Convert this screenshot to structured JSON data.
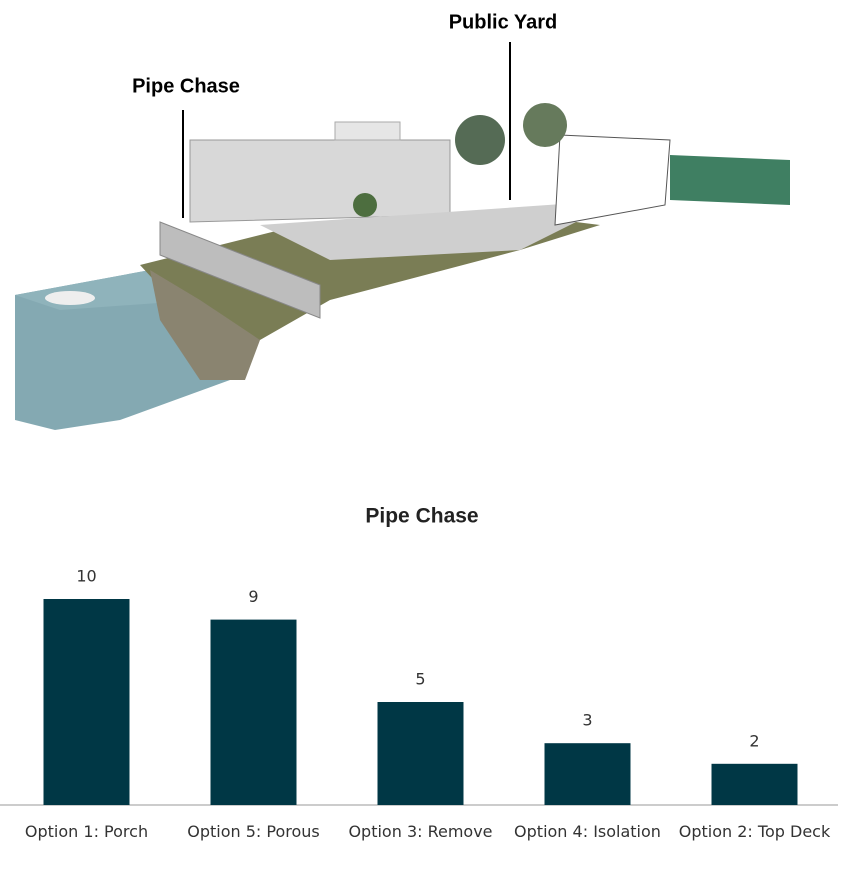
{
  "illustration": {
    "labels": [
      "Pipe Chase",
      "Public Yard"
    ]
  },
  "chart_data": {
    "type": "bar",
    "title": "Pipe Chase",
    "categories": [
      "Option 1: Porch",
      "Option 5: Porous",
      "Option 3: Remove",
      "Option 4: Isolation",
      "Option 2: Top Deck"
    ],
    "values": [
      10,
      9,
      5,
      3,
      2
    ],
    "color": "#003745"
  }
}
